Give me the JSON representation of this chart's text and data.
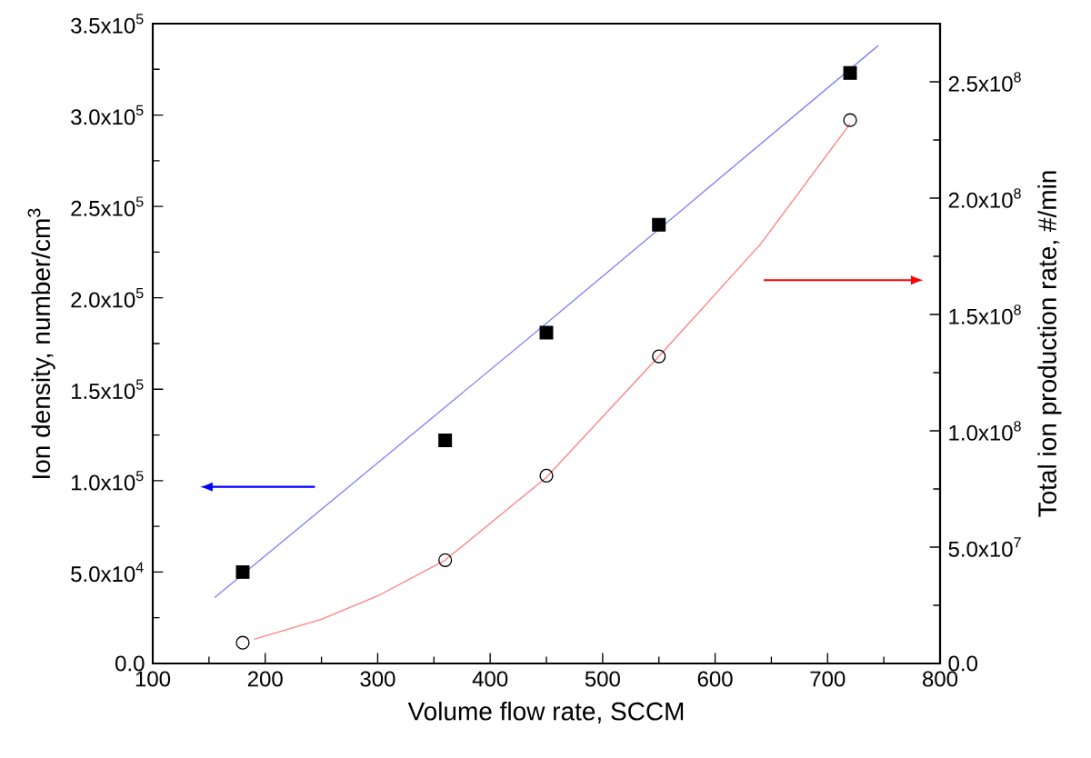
{
  "chart_data": {
    "type": "scatter",
    "xlabel": "Volume flow rate, SCCM",
    "ylabel": "Ion density, number/cm$^{3}$",
    "y2label": "Total ion production rate, #/min",
    "xlim": [
      100,
      800
    ],
    "xticks": [
      100,
      200,
      300,
      400,
      500,
      600,
      700,
      800
    ],
    "ylim": [
      0,
      350000
    ],
    "yticks": [
      {
        "value": 0,
        "label": "0.0"
      },
      {
        "value": 50000,
        "label": "5.0x10$^{4}$"
      },
      {
        "value": 100000,
        "label": "1.0x10$^{5}$"
      },
      {
        "value": 150000,
        "label": "1.5x10$^{5}$"
      },
      {
        "value": 200000,
        "label": "2.0x10$^{5}$"
      },
      {
        "value": 250000,
        "label": "2.5x10$^{5}$"
      },
      {
        "value": 300000,
        "label": "3.0x10$^{5}$"
      },
      {
        "value": 350000,
        "label": "3.5x10$^{5}$"
      }
    ],
    "y2lim": [
      0,
      275000000
    ],
    "y2ticks": [
      {
        "value": 0,
        "label": "0.0"
      },
      {
        "value": 50000000,
        "label": "5.0x10$^{7}$"
      },
      {
        "value": 100000000,
        "label": "1.0x10$^{8}$"
      },
      {
        "value": 150000000,
        "label": "1.5x10$^{8}$"
      },
      {
        "value": 200000000,
        "label": "2.0x10$^{8}$"
      },
      {
        "value": 250000000,
        "label": "2.5x10$^{8}$"
      }
    ],
    "series": [
      {
        "color": "#000000",
        "marker": "square",
        "x": [
          180,
          360,
          450,
          550,
          720
        ],
        "values": [
          50000,
          122000,
          181000,
          240000,
          323000
        ]
      },
      {
        "axis": "y2",
        "color": "#000000",
        "marker": "circle",
        "x": [
          180,
          360,
          450,
          550,
          720
        ],
        "values": [
          8900000,
          44400000,
          80700000,
          132000000,
          233500000
        ]
      },
      {
        "type": "line",
        "color": "#8080ff",
        "x": [
          155,
          450,
          745
        ],
        "values": [
          36000,
          186000,
          338000
        ]
      },
      {
        "type": "line",
        "axis": "y2",
        "color": "#ff8080",
        "x": [
          190,
          250,
          300,
          360,
          450,
          550,
          640,
          720
        ],
        "values": [
          10400000,
          19000000,
          29000000,
          44400000,
          80000000,
          132000000,
          180000000,
          232000000
        ]
      }
    ]
  }
}
